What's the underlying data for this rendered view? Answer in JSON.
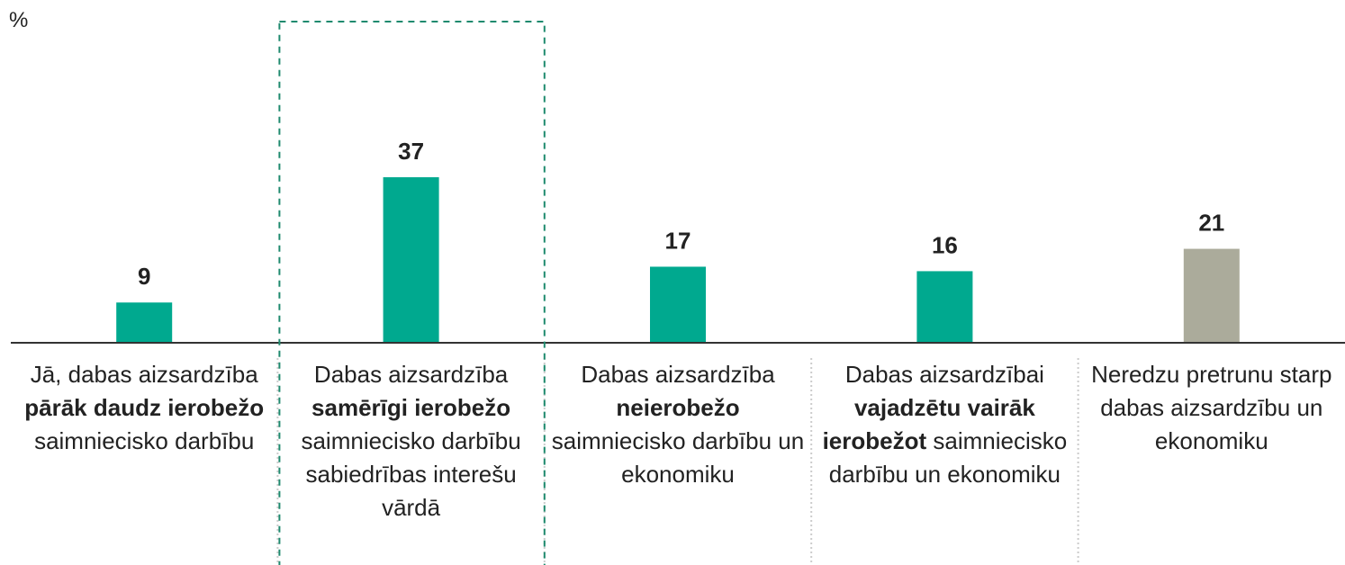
{
  "chart_data": {
    "type": "bar",
    "y_label": "%",
    "categories": [
      [
        {
          "text": "Jā, dabas aizsardzība "
        },
        {
          "text": "pārāk daudz ierobežo",
          "bold": true
        },
        {
          "text": " saimniecisko darbību"
        }
      ],
      [
        {
          "text": "Dabas aizsardzība "
        },
        {
          "text": "samērīgi ierobežo",
          "bold": true
        },
        {
          "text": " saimniecisko darbību sabiedrības interešu vārdā"
        }
      ],
      [
        {
          "text": "Dabas aizsardzība "
        },
        {
          "text": "neierobežo",
          "bold": true
        },
        {
          "text": " saimniecisko darbību un ekonomiku"
        }
      ],
      [
        {
          "text": "Dabas aizsardzībai "
        },
        {
          "text": "vajadzētu vairāk ierobežot",
          "bold": true
        },
        {
          "text": " saimniecisko darbību un ekonomiku"
        }
      ],
      [
        {
          "text": "Neredzu pretrunu starp dabas aizsardzību un ekonomiku"
        }
      ]
    ],
    "values": [
      9,
      37,
      17,
      16,
      21
    ],
    "colors": [
      "#00a98f",
      "#00a98f",
      "#00a98f",
      "#00a98f",
      "#abab9b"
    ],
    "highlight_category": 1,
    "ylim": [
      0,
      75
    ]
  }
}
